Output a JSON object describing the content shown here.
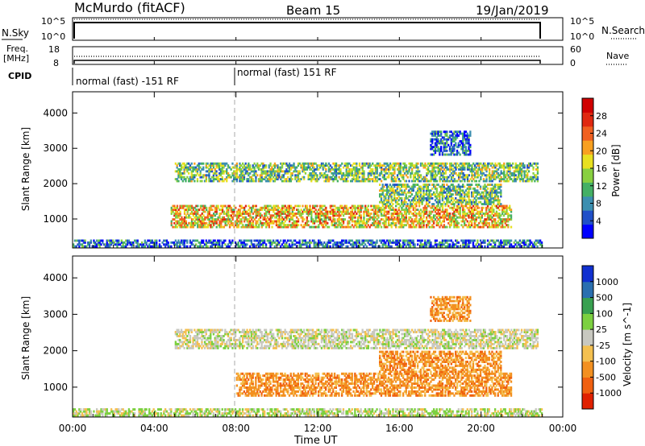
{
  "header": {
    "station": "McMurdo (fitACF)",
    "beam": "Beam 15",
    "date": "19/Jan/2019"
  },
  "top_panels": {
    "nsky_label": "N.Sky",
    "nsearch_label": "N.Search",
    "nsky_ticks": [
      "10^5",
      "10^0"
    ],
    "nsearch_ticks": [
      "10^5",
      "10^0"
    ],
    "freq_label_1": "Freq.",
    "freq_label_2": "[MHz]",
    "freq_ticks": [
      "18",
      "8"
    ],
    "nave_label": "Nave",
    "nave_ticks": [
      "60",
      "0"
    ],
    "cpid_label": "CPID",
    "cpid_segments": [
      {
        "label": "normal (fast) -151 RF",
        "start_h": 0,
        "end_h": 8
      },
      {
        "label": "normal (fast) 151 RF",
        "start_h": 8,
        "end_h": 23
      }
    ]
  },
  "chart_data": [
    {
      "type": "heatmap",
      "title": "Power",
      "ylabel": "Slant Range [km]",
      "xlim_hours": [
        0,
        24
      ],
      "ylim": [
        180,
        4600
      ],
      "yticks": [
        1000,
        2000,
        3000,
        4000
      ],
      "colorbar": {
        "label": "Power [dB]",
        "range": [
          0,
          32
        ],
        "ticks": [
          "4",
          "8",
          "12",
          "16",
          "20",
          "24",
          "28"
        ],
        "colors": [
          "#0000ff",
          "#2050c8",
          "#3c8fb0",
          "#44b065",
          "#88d040",
          "#e8e020",
          "#f8a020",
          "#f06020",
          "#e02810",
          "#d00000"
        ]
      },
      "regions": [
        {
          "t0": 5.0,
          "t1": 22.8,
          "r0": 2050,
          "r1": 2600,
          "level": "mid"
        },
        {
          "t0": 4.8,
          "t1": 21.5,
          "r0": 750,
          "r1": 1400,
          "level": "high"
        },
        {
          "t0": 15.0,
          "t1": 21.0,
          "r0": 1400,
          "r1": 2000,
          "level": "mid"
        },
        {
          "t0": 17.5,
          "t1": 19.5,
          "r0": 2800,
          "r1": 3500,
          "level": "low"
        },
        {
          "t0": 0.0,
          "t1": 23.0,
          "r0": 200,
          "r1": 420,
          "level": "low"
        }
      ]
    },
    {
      "type": "heatmap",
      "title": "Velocity",
      "ylabel": "Slant Range [km]",
      "xlabel": "Time UT",
      "xlim_hours": [
        0,
        24
      ],
      "xticks": [
        "00:00",
        "04:00",
        "08:00",
        "12:00",
        "16:00",
        "20:00",
        "00:00"
      ],
      "ylim": [
        180,
        4600
      ],
      "yticks": [
        1000,
        2000,
        3000,
        4000
      ],
      "colorbar": {
        "label": "Velocity [m s^-1]",
        "ticks": [
          "1000",
          "500",
          "100",
          "25",
          "-25",
          "-100",
          "-500",
          "-1000"
        ],
        "colors": [
          "#1030d0",
          "#2a6fb0",
          "#38a050",
          "#7cd040",
          "#c8c8c0",
          "#f4c050",
          "#f39020",
          "#f06010",
          "#e02000"
        ]
      },
      "regions": [
        {
          "t0": 5.0,
          "t1": 22.8,
          "r0": 2050,
          "r1": 2600,
          "level": "grey"
        },
        {
          "t0": 8.0,
          "t1": 21.5,
          "r0": 750,
          "r1": 1400,
          "level": "orange"
        },
        {
          "t0": 15.0,
          "t1": 21.0,
          "r0": 1400,
          "r1": 2000,
          "level": "orange"
        },
        {
          "t0": 17.5,
          "t1": 19.5,
          "r0": 2800,
          "r1": 3500,
          "level": "orange"
        },
        {
          "t0": 0.0,
          "t1": 23.0,
          "r0": 200,
          "r1": 420,
          "level": "green"
        }
      ]
    }
  ]
}
